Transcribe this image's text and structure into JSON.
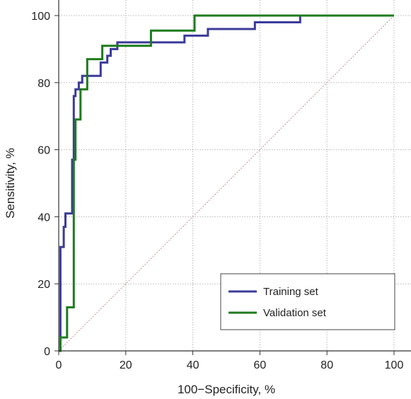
{
  "chart_data": {
    "type": "line",
    "xlabel": "100−Specificity, %",
    "ylabel": "Sensitivity, %",
    "xlim": [
      0,
      100
    ],
    "ylim": [
      0,
      100
    ],
    "x_ticks": [
      "0",
      "20",
      "40",
      "60",
      "80",
      "100"
    ],
    "y_ticks": [
      "0",
      "20",
      "40",
      "60",
      "80",
      "100"
    ],
    "grid": "dotted",
    "legend_position": "bottom-right",
    "series": [
      {
        "name": "Training set",
        "color": "#3b3b9a",
        "x": [
          0,
          0.5,
          0.5,
          1.5,
          1.5,
          2,
          2,
          4,
          4,
          4.5,
          4.5,
          5,
          5,
          6,
          6,
          7,
          7,
          7.5,
          7.5,
          8.5,
          8.5,
          12.5,
          12.5,
          14.5,
          14.5,
          15.5,
          15.5,
          17.5,
          17.5,
          37.5,
          37.5,
          44.5,
          44.5,
          58.5,
          58.5,
          72,
          72,
          100
        ],
        "y": [
          0,
          0,
          31,
          31,
          37,
          37,
          41,
          41,
          57,
          57,
          76,
          76,
          78,
          78,
          80,
          80,
          82,
          82,
          82,
          82,
          82,
          82,
          86,
          86,
          88,
          88,
          90,
          90,
          92,
          92,
          94,
          94,
          96,
          96,
          98,
          98,
          100,
          100
        ]
      },
      {
        "name": "Validation set",
        "color": "#1e7b1e",
        "x": [
          0,
          0.5,
          0.5,
          2.5,
          2.5,
          4.5,
          4.5,
          5,
          5,
          6.5,
          6.5,
          8.5,
          8.5,
          11,
          11,
          13,
          13,
          17.5,
          17.5,
          27.5,
          27.5,
          40.5,
          40.5,
          100
        ],
        "y": [
          0,
          0,
          4,
          4,
          13,
          13,
          57,
          57,
          69,
          69,
          78,
          78,
          87,
          87,
          87,
          87,
          91,
          91,
          91,
          91,
          95.5,
          95.5,
          100,
          100
        ]
      },
      {
        "color": "#d98c8c",
        "dashed": true,
        "x": [
          0,
          100
        ],
        "y": [
          0,
          100
        ]
      }
    ]
  }
}
